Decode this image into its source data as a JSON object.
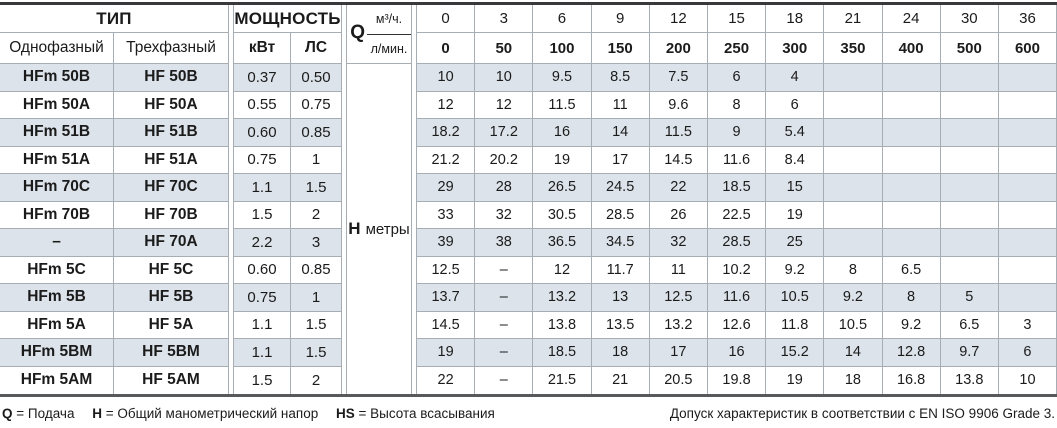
{
  "colors": {
    "stripe": "#dce3ea",
    "grid_line": "#a6aeb4",
    "top_border": "#39393b",
    "bottom_border": "#58595b"
  },
  "header": {
    "type_label": "ТИП",
    "single_phase": "Однофазный",
    "three_phase": "Трехфазный",
    "power_label": "МОЩНОСТЬ",
    "kw": "кВт",
    "hp": "ЛС",
    "q_label": "Q",
    "m3h_label": "м³/ч.",
    "lmin_label": "л/мин.",
    "m3h_values": [
      "0",
      "3",
      "6",
      "9",
      "12",
      "15",
      "18",
      "21",
      "24",
      "30",
      "36"
    ],
    "lmin_values": [
      "0",
      "50",
      "100",
      "150",
      "200",
      "250",
      "300",
      "350",
      "400",
      "500",
      "600"
    ]
  },
  "h_label": {
    "bold": "H",
    "unit": "метры"
  },
  "rows": [
    {
      "single": "HFm 50B",
      "three": "HF 50B",
      "kw": "0.37",
      "hp": "0.50",
      "h": [
        "10",
        "10",
        "9.5",
        "8.5",
        "7.5",
        "6",
        "4",
        "",
        "",
        "",
        ""
      ]
    },
    {
      "single": "HFm 50A",
      "three": "HF 50A",
      "kw": "0.55",
      "hp": "0.75",
      "h": [
        "12",
        "12",
        "11.5",
        "11",
        "9.6",
        "8",
        "6",
        "",
        "",
        "",
        ""
      ]
    },
    {
      "single": "HFm 51B",
      "three": "HF 51B",
      "kw": "0.60",
      "hp": "0.85",
      "h": [
        "18.2",
        "17.2",
        "16",
        "14",
        "11.5",
        "9",
        "5.4",
        "",
        "",
        "",
        ""
      ]
    },
    {
      "single": "HFm 51A",
      "three": "HF 51A",
      "kw": "0.75",
      "hp": "1",
      "h": [
        "21.2",
        "20.2",
        "19",
        "17",
        "14.5",
        "11.6",
        "8.4",
        "",
        "",
        "",
        ""
      ]
    },
    {
      "single": "HFm 70C",
      "three": "HF 70C",
      "kw": "1.1",
      "hp": "1.5",
      "h": [
        "29",
        "28",
        "26.5",
        "24.5",
        "22",
        "18.5",
        "15",
        "",
        "",
        "",
        ""
      ]
    },
    {
      "single": "HFm 70B",
      "three": "HF 70B",
      "kw": "1.5",
      "hp": "2",
      "h": [
        "33",
        "32",
        "30.5",
        "28.5",
        "26",
        "22.5",
        "19",
        "",
        "",
        "",
        ""
      ]
    },
    {
      "single": "–",
      "three": "HF 70A",
      "kw": "2.2",
      "hp": "3",
      "h": [
        "39",
        "38",
        "36.5",
        "34.5",
        "32",
        "28.5",
        "25",
        "",
        "",
        "",
        ""
      ]
    },
    {
      "single": "HFm 5C",
      "three": "HF 5C",
      "kw": "0.60",
      "hp": "0.85",
      "h": [
        "12.5",
        "–",
        "12",
        "11.7",
        "11",
        "10.2",
        "9.2",
        "8",
        "6.5",
        "",
        ""
      ]
    },
    {
      "single": "HFm 5B",
      "three": "HF 5B",
      "kw": "0.75",
      "hp": "1",
      "h": [
        "13.7",
        "–",
        "13.2",
        "13",
        "12.5",
        "11.6",
        "10.5",
        "9.2",
        "8",
        "5",
        ""
      ]
    },
    {
      "single": "HFm 5A",
      "three": "HF 5A",
      "kw": "1.1",
      "hp": "1.5",
      "h": [
        "14.5",
        "–",
        "13.8",
        "13.5",
        "13.2",
        "12.6",
        "11.8",
        "10.5",
        "9.2",
        "6.5",
        "3"
      ]
    },
    {
      "single": "HFm 5BM",
      "three": "HF 5BM",
      "kw": "1.1",
      "hp": "1.5",
      "h": [
        "19",
        "–",
        "18.5",
        "18",
        "17",
        "16",
        "15.2",
        "14",
        "12.8",
        "9.7",
        "6"
      ]
    },
    {
      "single": "HFm 5AM",
      "three": "HF 5AM",
      "kw": "1.5",
      "hp": "2",
      "h": [
        "22",
        "–",
        "21.5",
        "21",
        "20.5",
        "19.8",
        "19",
        "18",
        "16.8",
        "13.8",
        "10"
      ]
    }
  ],
  "footer": {
    "legend": [
      {
        "term": "Q",
        "def": "= Подача"
      },
      {
        "term": "H",
        "def": "= Общий манометрический напор"
      },
      {
        "term": "HS",
        "def": "= Высота всасывания"
      }
    ],
    "tolerance": "Допуск характеристик в соответствии с EN ISO 9906 Grade 3."
  }
}
